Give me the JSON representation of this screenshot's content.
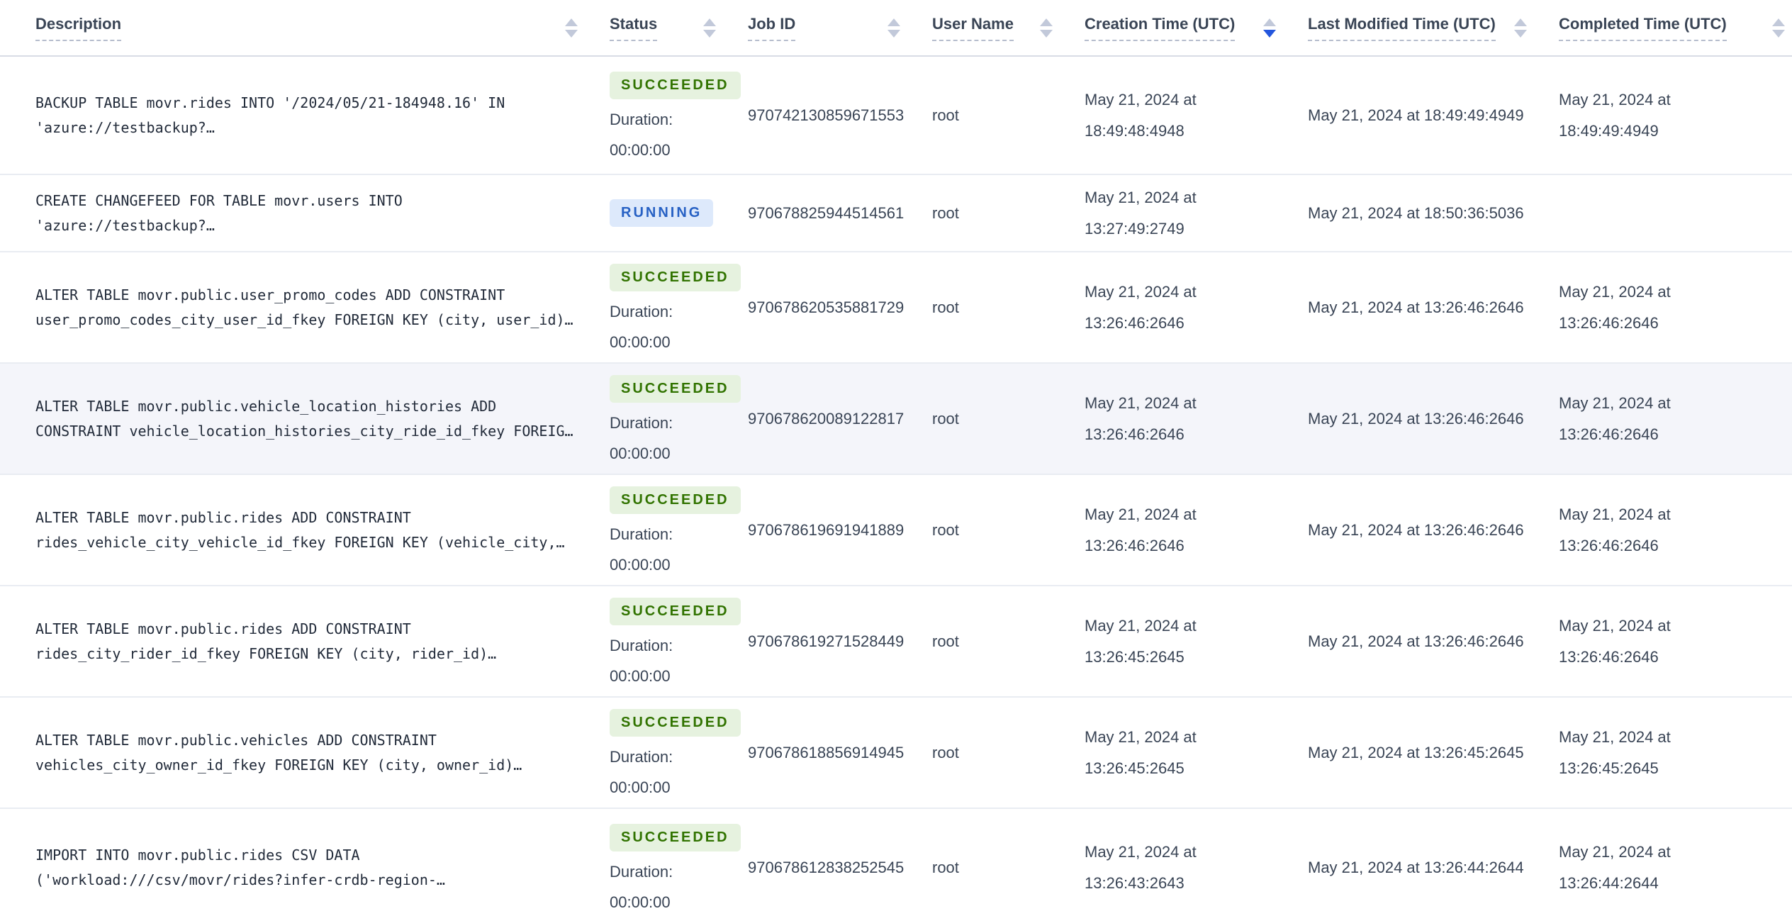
{
  "table": {
    "columns": [
      {
        "key": "description",
        "label": "Description",
        "sort": "none"
      },
      {
        "key": "status",
        "label": "Status",
        "sort": "none"
      },
      {
        "key": "job_id",
        "label": "Job ID",
        "sort": "none"
      },
      {
        "key": "user_name",
        "label": "User Name",
        "sort": "none"
      },
      {
        "key": "creation_time",
        "label": "Creation Time (UTC)",
        "sort": "desc"
      },
      {
        "key": "modified_time",
        "label": "Last Modified Time (UTC)",
        "sort": "none"
      },
      {
        "key": "completed_time",
        "label": "Completed Time (UTC)",
        "sort": "none"
      }
    ],
    "rows": [
      {
        "description_lines": [
          "BACKUP TABLE movr.rides INTO '/2024/05/21-184948.16' IN",
          "'azure://testbackup?…"
        ],
        "status": "SUCCEEDED",
        "duration_label": "Duration:",
        "duration": "00:00:00",
        "job_id": "970742130859671553",
        "user_name": "root",
        "creation_time": "May 21, 2024 at 18:49:48:4948",
        "modified_time": "May 21, 2024 at 18:49:49:4949",
        "completed_time": "May 21, 2024 at 18:49:49:4949",
        "highlighted": false
      },
      {
        "description_lines": [
          "CREATE CHANGEFEED FOR TABLE movr.users INTO",
          "'azure://testbackup?…"
        ],
        "status": "RUNNING",
        "duration_label": "",
        "duration": "",
        "job_id": "970678825944514561",
        "user_name": "root",
        "creation_time": "May 21, 2024 at 13:27:49:2749",
        "modified_time": "May 21, 2024 at 18:50:36:5036",
        "completed_time": "",
        "highlighted": false
      },
      {
        "description_lines": [
          "ALTER TABLE movr.public.user_promo_codes ADD CONSTRAINT",
          "user_promo_codes_city_user_id_fkey FOREIGN KEY (city, user_id)…"
        ],
        "status": "SUCCEEDED",
        "duration_label": "Duration:",
        "duration": "00:00:00",
        "job_id": "970678620535881729",
        "user_name": "root",
        "creation_time": "May 21, 2024 at 13:26:46:2646",
        "modified_time": "May 21, 2024 at 13:26:46:2646",
        "completed_time": "May 21, 2024 at 13:26:46:2646",
        "highlighted": false
      },
      {
        "description_lines": [
          "ALTER TABLE movr.public.vehicle_location_histories ADD",
          "CONSTRAINT vehicle_location_histories_city_ride_id_fkey FOREIG…"
        ],
        "status": "SUCCEEDED",
        "duration_label": "Duration:",
        "duration": "00:00:00",
        "job_id": "970678620089122817",
        "user_name": "root",
        "creation_time": "May 21, 2024 at 13:26:46:2646",
        "modified_time": "May 21, 2024 at 13:26:46:2646",
        "completed_time": "May 21, 2024 at 13:26:46:2646",
        "highlighted": true
      },
      {
        "description_lines": [
          "ALTER TABLE movr.public.rides ADD CONSTRAINT",
          "rides_vehicle_city_vehicle_id_fkey FOREIGN KEY (vehicle_city,…"
        ],
        "status": "SUCCEEDED",
        "duration_label": "Duration:",
        "duration": "00:00:00",
        "job_id": "970678619691941889",
        "user_name": "root",
        "creation_time": "May 21, 2024 at 13:26:46:2646",
        "modified_time": "May 21, 2024 at 13:26:46:2646",
        "completed_time": "May 21, 2024 at 13:26:46:2646",
        "highlighted": false
      },
      {
        "description_lines": [
          "ALTER TABLE movr.public.rides ADD CONSTRAINT",
          "rides_city_rider_id_fkey FOREIGN KEY (city, rider_id)…"
        ],
        "status": "SUCCEEDED",
        "duration_label": "Duration:",
        "duration": "00:00:00",
        "job_id": "970678619271528449",
        "user_name": "root",
        "creation_time": "May 21, 2024 at 13:26:45:2645",
        "modified_time": "May 21, 2024 at 13:26:46:2646",
        "completed_time": "May 21, 2024 at 13:26:46:2646",
        "highlighted": false
      },
      {
        "description_lines": [
          "ALTER TABLE movr.public.vehicles ADD CONSTRAINT",
          "vehicles_city_owner_id_fkey FOREIGN KEY (city, owner_id)…"
        ],
        "status": "SUCCEEDED",
        "duration_label": "Duration:",
        "duration": "00:00:00",
        "job_id": "970678618856914945",
        "user_name": "root",
        "creation_time": "May 21, 2024 at 13:26:45:2645",
        "modified_time": "May 21, 2024 at 13:26:45:2645",
        "completed_time": "May 21, 2024 at 13:26:45:2645",
        "highlighted": false
      },
      {
        "description_lines": [
          "IMPORT INTO movr.public.rides CSV DATA",
          "('workload:///csv/movr/rides?infer-crdb-region-…"
        ],
        "status": "SUCCEEDED",
        "duration_label": "Duration:",
        "duration": "00:00:00",
        "job_id": "970678612838252545",
        "user_name": "root",
        "creation_time": "May 21, 2024 at 13:26:43:2643",
        "modified_time": "May 21, 2024 at 13:26:44:2644",
        "completed_time": "May 21, 2024 at 13:26:44:2644",
        "highlighted": false
      }
    ]
  },
  "colors": {
    "header_text": "#394455",
    "body_text": "#394455",
    "mono_text": "#222b3a",
    "row_highlight_bg": "#f4f5fa",
    "row_border": "#e9ecf2",
    "header_border": "#d8dce5",
    "sort_inactive": "#c2c9da",
    "sort_active": "#2456dd",
    "succeeded_bg": "#e6f2df",
    "succeeded_text": "#317300",
    "running_bg": "#dde9fb",
    "running_text": "#2761c4"
  }
}
